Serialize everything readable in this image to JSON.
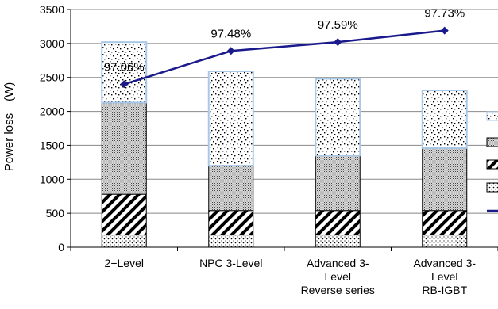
{
  "chart_data": {
    "type": "bar",
    "stacked": true,
    "categories": [
      [
        "2−Level"
      ],
      [
        "NPC 3-Level"
      ],
      [
        "Advanced 3-",
        "Level",
        "Reverse series"
      ],
      [
        "Advanced 3-",
        "Level",
        "RB-IGBT"
      ]
    ],
    "series": [
      {
        "pattern": "dots",
        "values": [
          180,
          180,
          180,
          180
        ]
      },
      {
        "pattern": "diagonal",
        "values": [
          600,
          360,
          360,
          360
        ]
      },
      {
        "pattern": "dense",
        "values": [
          1350,
          660,
          810,
          920
        ]
      },
      {
        "pattern": "sparse",
        "values": [
          890,
          1390,
          1130,
          850
        ]
      }
    ],
    "line": {
      "values": [
        2400,
        2890,
        3020,
        3190
      ],
      "labels": [
        "97.06%",
        "97.48%",
        "97.59%",
        "97.73%"
      ],
      "color": "#1a1a8c"
    },
    "ylabel": "Power loss　(W)",
    "ylim": [
      0,
      3500
    ],
    "yticks": [
      "0",
      "500",
      "1000",
      "1500",
      "2000",
      "2500",
      "3000",
      "3500"
    ],
    "legend_position": "right",
    "bar_border_colors": {
      "sparse": "#a8c8e8",
      "other": "#000000"
    }
  }
}
